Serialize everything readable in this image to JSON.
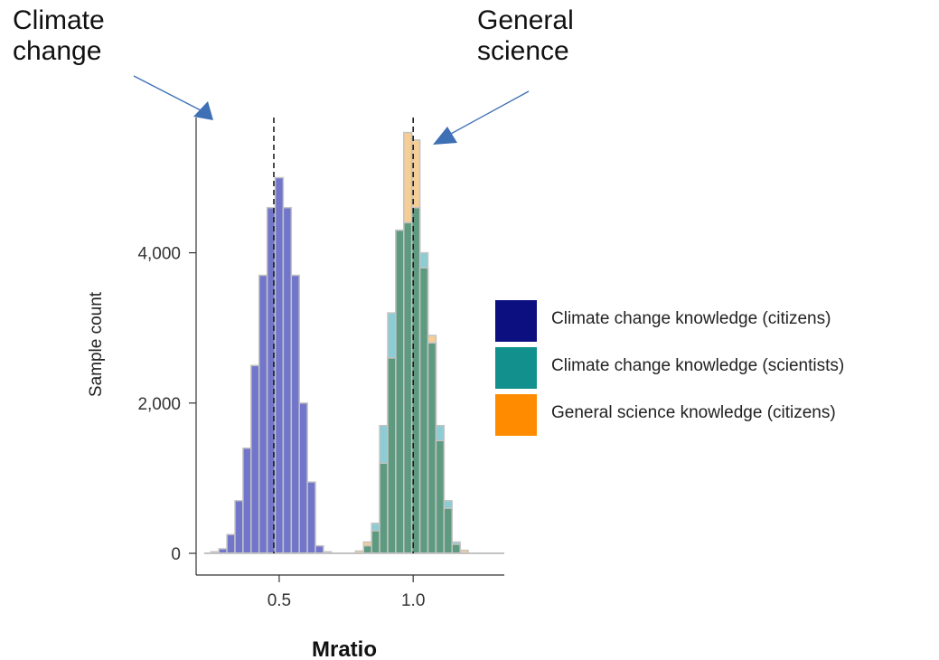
{
  "annotations": {
    "left_line1": "Climate",
    "left_line2": "change",
    "right_line1": "General",
    "right_line2": "science"
  },
  "legend": [
    {
      "label": "Climate change knowledge (citizens)",
      "color": "#0b0f80"
    },
    {
      "label": "Climate change knowledge (scientists)",
      "color": "#12908e"
    },
    {
      "label": "General science knowledge (citizens)",
      "color": "#ff8c00"
    }
  ],
  "chart_data": {
    "type": "bar",
    "xlabel": "Mratio",
    "ylabel": "Sample count",
    "xlim": [
      0.19,
      1.34
    ],
    "ylim": [
      0,
      5800
    ],
    "x_ticks": [
      {
        "value": 0.5,
        "label": "0.5"
      },
      {
        "value": 1.0,
        "label": "1.0"
      }
    ],
    "y_ticks": [
      {
        "value": 0,
        "label": "0"
      },
      {
        "value": 2000,
        "label": "2,000"
      },
      {
        "value": 4000,
        "label": "4,000"
      }
    ],
    "bin_width": 0.03,
    "reference_lines": [
      0.48,
      1.0
    ],
    "series": [
      {
        "name": "Climate change knowledge (citizens)",
        "color": "#6a6fc8",
        "bins": [
          {
            "x": 0.26,
            "y": 20
          },
          {
            "x": 0.29,
            "y": 60
          },
          {
            "x": 0.32,
            "y": 250
          },
          {
            "x": 0.35,
            "y": 700
          },
          {
            "x": 0.38,
            "y": 1400
          },
          {
            "x": 0.41,
            "y": 2500
          },
          {
            "x": 0.44,
            "y": 3700
          },
          {
            "x": 0.47,
            "y": 4600
          },
          {
            "x": 0.5,
            "y": 5000
          },
          {
            "x": 0.53,
            "y": 4600
          },
          {
            "x": 0.56,
            "y": 3700
          },
          {
            "x": 0.59,
            "y": 2000
          },
          {
            "x": 0.62,
            "y": 950
          },
          {
            "x": 0.65,
            "y": 100
          },
          {
            "x": 0.68,
            "y": 20
          }
        ]
      },
      {
        "name": "Climate change knowledge (scientists)",
        "color": "#7fc7cf",
        "bins": [
          {
            "x": 0.83,
            "y": 100
          },
          {
            "x": 0.86,
            "y": 400
          },
          {
            "x": 0.89,
            "y": 1700
          },
          {
            "x": 0.92,
            "y": 3200
          },
          {
            "x": 0.95,
            "y": 4300
          },
          {
            "x": 0.98,
            "y": 4400
          },
          {
            "x": 1.01,
            "y": 4600
          },
          {
            "x": 1.04,
            "y": 4000
          },
          {
            "x": 1.07,
            "y": 2800
          },
          {
            "x": 1.1,
            "y": 1700
          },
          {
            "x": 1.13,
            "y": 700
          },
          {
            "x": 1.16,
            "y": 150
          }
        ]
      },
      {
        "name": "General science knowledge (citizens)",
        "color": "#f5c98a",
        "bins": [
          {
            "x": 0.8,
            "y": 30
          },
          {
            "x": 0.83,
            "y": 150
          },
          {
            "x": 0.86,
            "y": 300
          },
          {
            "x": 0.89,
            "y": 1200
          },
          {
            "x": 0.92,
            "y": 2600
          },
          {
            "x": 0.95,
            "y": 4300
          },
          {
            "x": 0.98,
            "y": 5600
          },
          {
            "x": 1.01,
            "y": 5500
          },
          {
            "x": 1.04,
            "y": 3800
          },
          {
            "x": 1.07,
            "y": 2900
          },
          {
            "x": 1.1,
            "y": 1500
          },
          {
            "x": 1.13,
            "y": 600
          },
          {
            "x": 1.16,
            "y": 120
          },
          {
            "x": 1.19,
            "y": 40
          }
        ]
      }
    ]
  }
}
